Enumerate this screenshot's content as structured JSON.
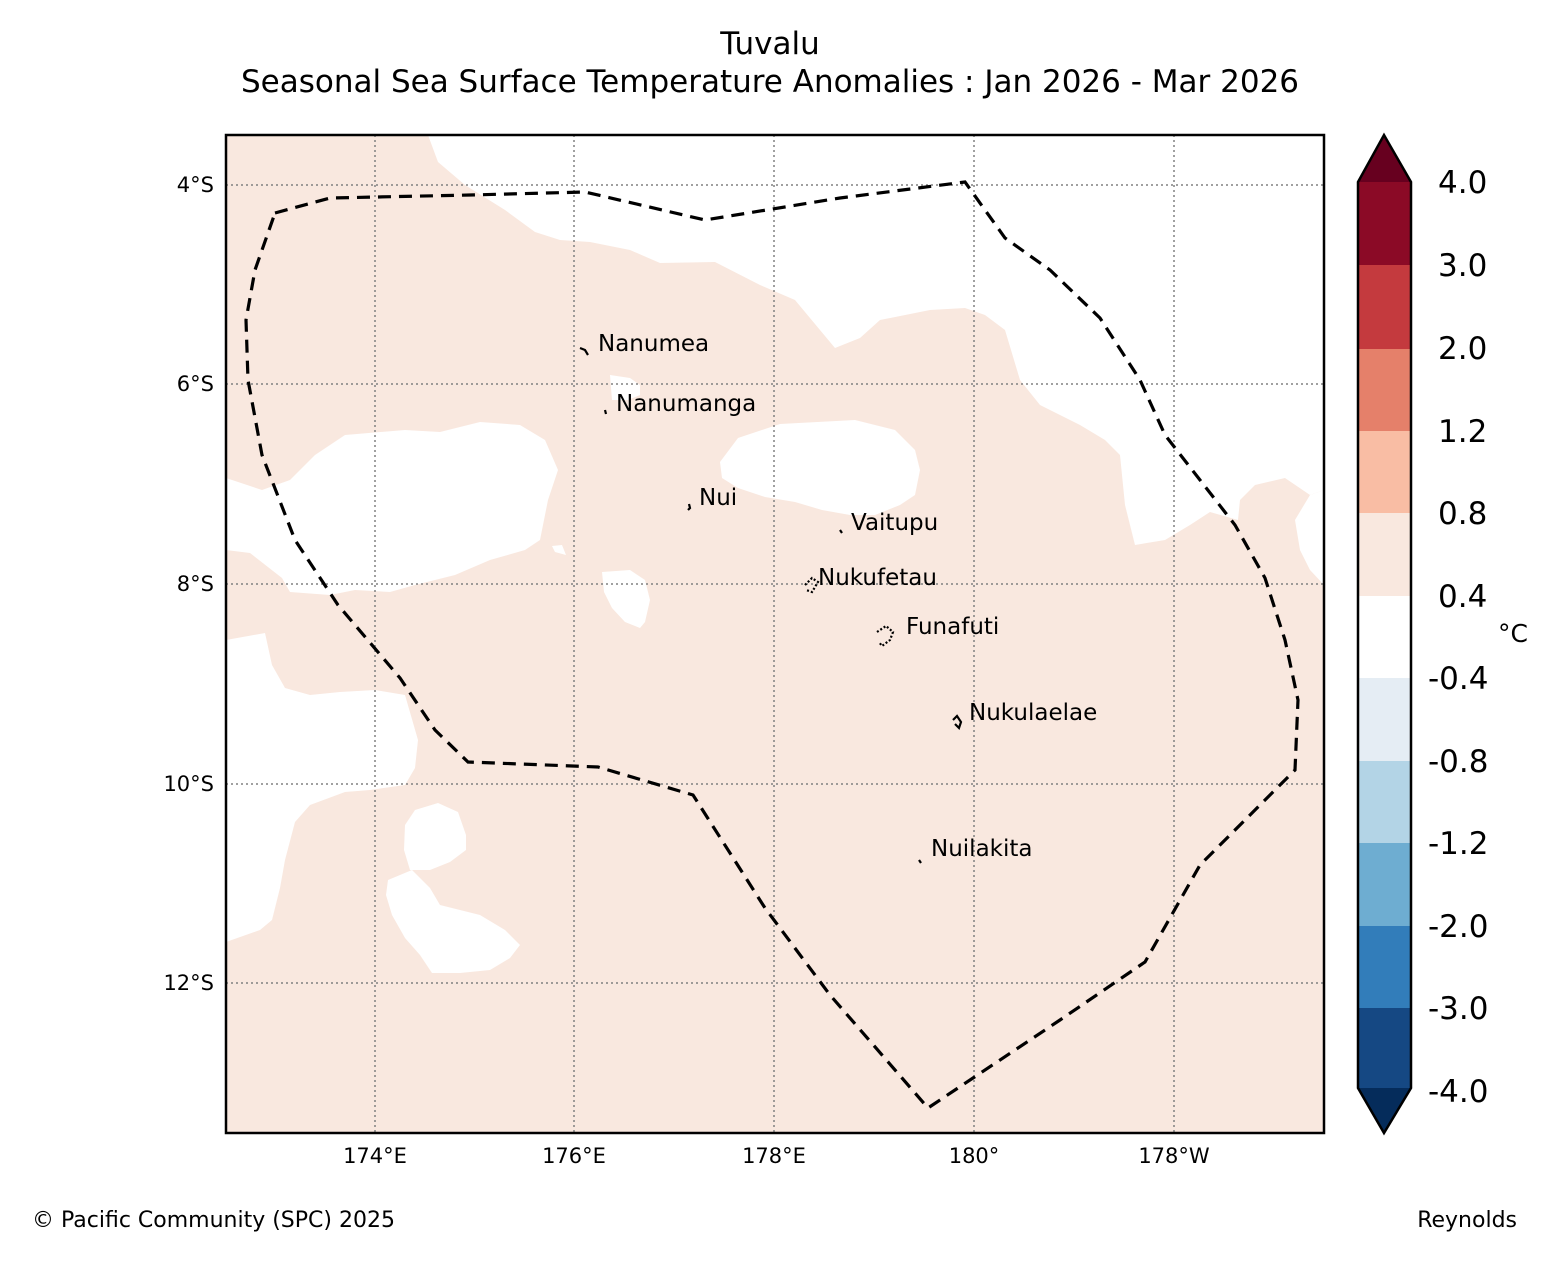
{
  "title": {
    "line1": "Tuvalu",
    "line2": "Seasonal Sea Surface Temperature Anomalies : Jan 2026 - Mar 2026"
  },
  "map": {
    "latitude_labels": [
      "4°S",
      "6°S",
      "8°S",
      "10°S",
      "12°S"
    ],
    "longitude_labels": [
      "174°E",
      "176°E",
      "178°E",
      "180°",
      "178°W"
    ],
    "islands": [
      {
        "name": "Nanumea"
      },
      {
        "name": "Nanumanga"
      },
      {
        "name": "Nui"
      },
      {
        "name": "Vaitupu"
      },
      {
        "name": "Nukufetau"
      },
      {
        "name": "Funafuti"
      },
      {
        "name": "Nukulaelae"
      },
      {
        "name": "Nuilakita"
      }
    ]
  },
  "colorbar": {
    "unit": "°C",
    "labels": [
      "4.0",
      "3.0",
      "2.0",
      "1.2",
      "0.8",
      "0.4",
      "-0.4",
      "-0.8",
      "-1.2",
      "-2.0",
      "-3.0",
      "-4.0"
    ],
    "colors": {
      "above_max": "#67001f",
      "3_to_4": "#8b0a26",
      "2_to_3": "#c43a3e",
      "1.2_to_2": "#e5806a",
      "0.8_to_1.2": "#f9bda4",
      "0.4_to_0.8": "#f9e8df",
      "neutral": "#ffffff",
      "m0.8_to_m0.4": "#e5edf4",
      "m1.2_to_m0.8": "#b3d4e6",
      "m2_to_m1.2": "#6eadd1",
      "m3_to_m2": "#327dba",
      "m4_to_m3": "#154883",
      "below_min": "#052c5b"
    }
  },
  "footer": {
    "copyright": "© Pacific Community (SPC) 2025",
    "source": "Reynolds"
  }
}
